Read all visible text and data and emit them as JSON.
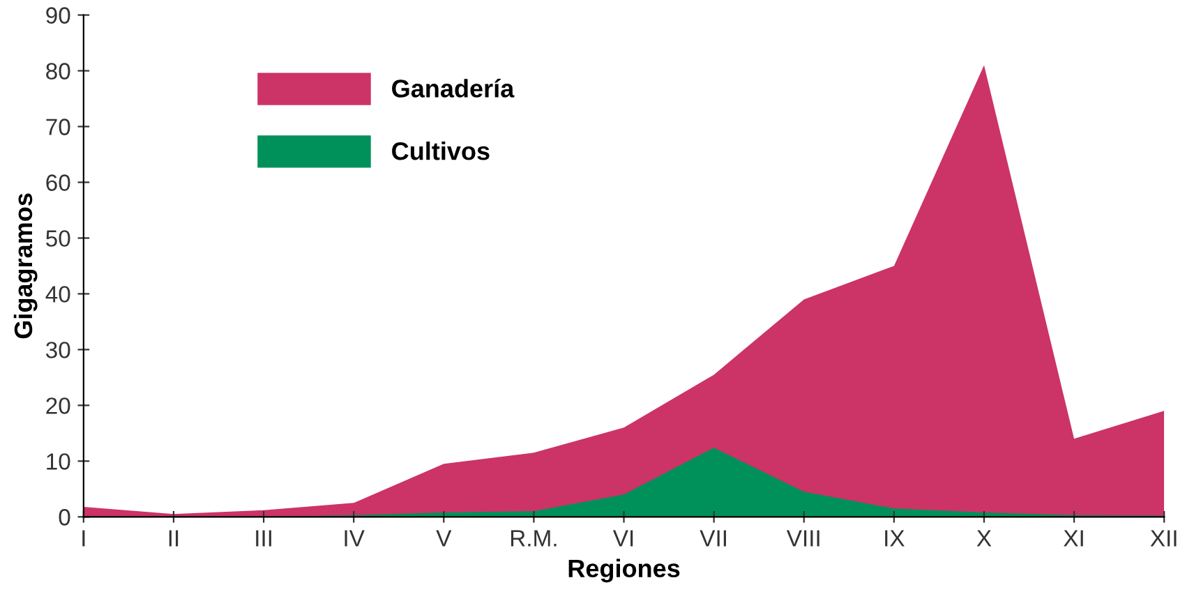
{
  "chart_data": {
    "type": "area",
    "xlabel": "Regiones",
    "ylabel": "Gigagramos",
    "categories": [
      "I",
      "II",
      "III",
      "IV",
      "V",
      "R.M.",
      "VI",
      "VII",
      "VIII",
      "IX",
      "X",
      "XI",
      "XII"
    ],
    "series": [
      {
        "name": "Ganadería",
        "color": "#cc3366",
        "values": [
          1.8,
          0.5,
          1.2,
          2.5,
          9.5,
          11.5,
          16,
          25.5,
          39,
          45,
          81,
          14,
          19
        ]
      },
      {
        "name": "Cultivos",
        "color": "#00915a",
        "values": [
          0,
          0,
          0,
          0.3,
          0.8,
          1,
          4,
          12.4,
          4.5,
          1.5,
          0.8,
          0.3,
          0.2
        ]
      }
    ],
    "ylim": [
      0,
      90
    ],
    "yticks": [
      0,
      10,
      20,
      30,
      40,
      50,
      60,
      70,
      80,
      90
    ],
    "grid": false,
    "legend": "top left"
  }
}
